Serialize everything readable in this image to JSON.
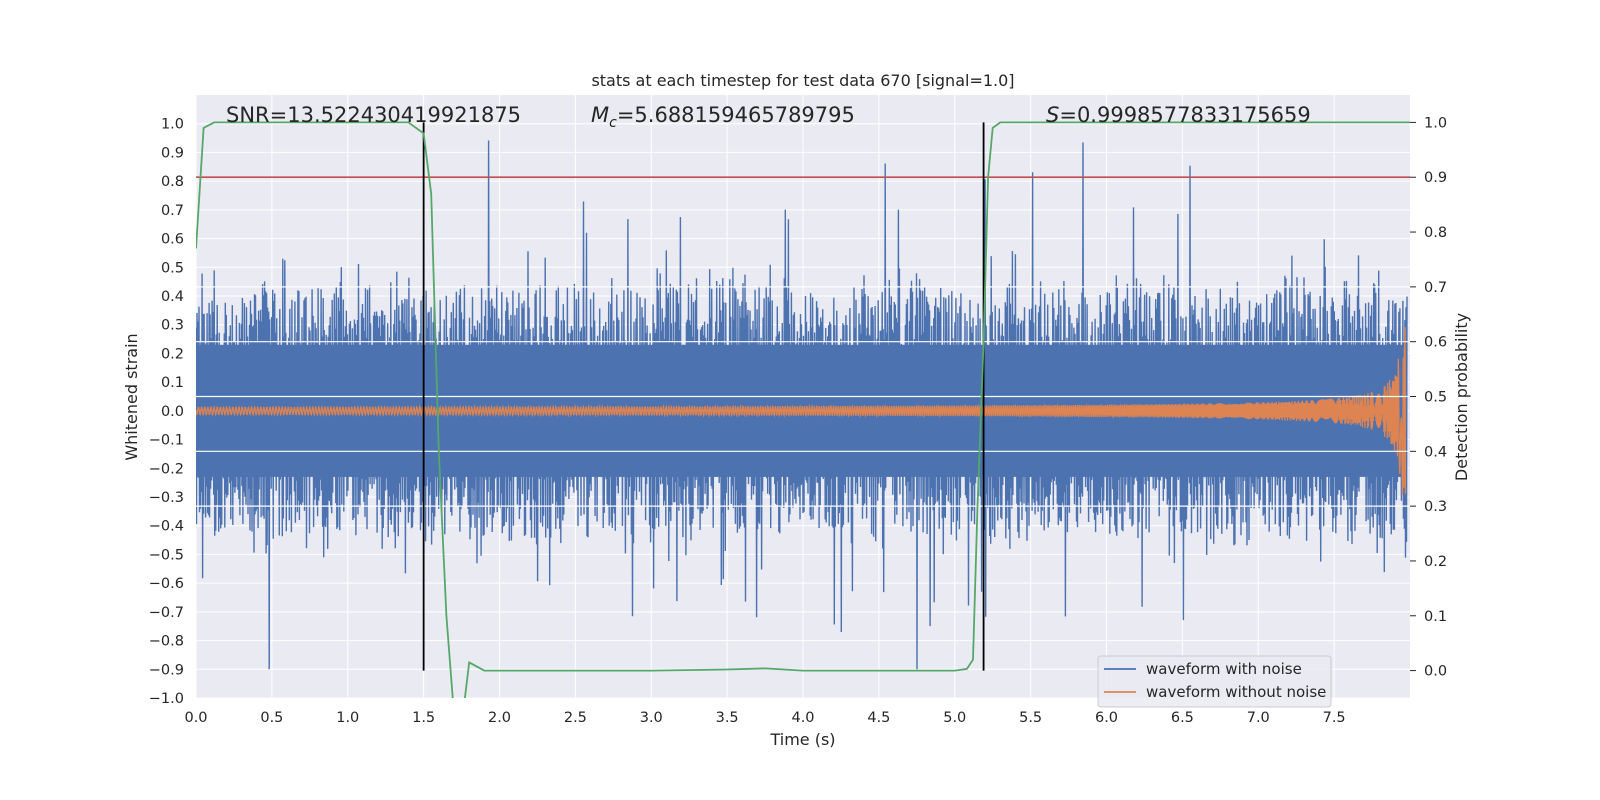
{
  "chart_data": {
    "type": "line",
    "title": "stats at each timestep for test data 670 [signal=1.0]",
    "xlabel": "Time (s)",
    "ylabel": "Whitened strain",
    "y2label": "Detection probability",
    "xlim": [
      0.0,
      8.0
    ],
    "ylim": [
      -1.0,
      1.1
    ],
    "y2lim": [
      -0.05,
      1.05
    ],
    "xticks": [
      "0.0",
      "0.5",
      "1.0",
      "1.5",
      "2.0",
      "2.5",
      "3.0",
      "3.5",
      "4.0",
      "4.5",
      "5.0",
      "5.5",
      "6.0",
      "6.5",
      "7.0",
      "7.5"
    ],
    "xtick_values": [
      0.0,
      0.5,
      1.0,
      1.5,
      2.0,
      2.5,
      3.0,
      3.5,
      4.0,
      4.5,
      5.0,
      5.5,
      6.0,
      6.5,
      7.0,
      7.5
    ],
    "yticks": [
      "−1.0",
      "−0.9",
      "−0.8",
      "−0.7",
      "−0.6",
      "−0.5",
      "−0.4",
      "−0.3",
      "−0.2",
      "−0.1",
      "0.0",
      "0.1",
      "0.2",
      "0.3",
      "0.4",
      "0.5",
      "0.6",
      "0.7",
      "0.8",
      "0.9",
      "1.0"
    ],
    "ytick_values": [
      -1.0,
      -0.9,
      -0.8,
      -0.7,
      -0.6,
      -0.5,
      -0.4,
      -0.3,
      -0.2,
      -0.1,
      0.0,
      0.1,
      0.2,
      0.3,
      0.4,
      0.5,
      0.6,
      0.7,
      0.8,
      0.9,
      1.0
    ],
    "y2ticks": [
      "0.0",
      "0.1",
      "0.2",
      "0.3",
      "0.4",
      "0.5",
      "0.6",
      "0.7",
      "0.8",
      "0.9",
      "1.0"
    ],
    "y2tick_values": [
      0.0,
      0.1,
      0.2,
      0.3,
      0.4,
      0.5,
      0.6,
      0.7,
      0.8,
      0.9,
      1.0
    ],
    "annotations": {
      "snr": "SNR=13.522430419921875",
      "mc_symbol": "M",
      "mc_sub": "c",
      "mc_value": "=5.688159465789795",
      "s_symbol": "S",
      "s_value": "=0.9998577833175659"
    },
    "threshold": {
      "value": 0.9,
      "axis": "y2",
      "color": "#c44e52"
    },
    "vlines": [
      1.5,
      5.19
    ],
    "series": [
      {
        "name": "waveform with noise",
        "axis": "y",
        "color": "#4c72b0",
        "description": "whitened noisy strain, amplitude mostly within ±0.5 with spikes up to 1.0 / −0.9"
      },
      {
        "name": "waveform without noise",
        "axis": "y",
        "color": "#dd8452",
        "description": "chirp signal, amplitude growing from ~0.02 to ~0.3 near t=7.95"
      },
      {
        "name": "detection probability",
        "axis": "y2",
        "color": "#55a868",
        "x": [
          0.0,
          0.05,
          0.12,
          0.2,
          0.5,
          1.0,
          1.4,
          1.5,
          1.55,
          1.6,
          1.65,
          1.7,
          1.75,
          1.8,
          1.9,
          2.0,
          2.5,
          3.0,
          3.5,
          3.75,
          4.0,
          4.5,
          5.0,
          5.08,
          5.12,
          5.15,
          5.19,
          5.22,
          5.25,
          5.3,
          5.4,
          6.0,
          7.0,
          8.0
        ],
        "values": [
          0.77,
          0.99,
          1.0,
          1.0,
          1.0,
          1.0,
          1.0,
          0.98,
          0.87,
          0.4,
          0.1,
          -0.08,
          -0.1,
          0.015,
          0.0,
          0.0,
          0.0,
          0.0,
          0.002,
          0.004,
          0.0,
          0.0,
          0.0,
          0.003,
          0.02,
          0.3,
          0.6,
          0.9,
          0.99,
          1.0,
          1.0,
          1.0,
          1.0,
          1.0
        ]
      }
    ],
    "legend": {
      "placement": "lower-right",
      "entries": [
        "waveform with noise",
        "waveform without noise"
      ]
    }
  }
}
